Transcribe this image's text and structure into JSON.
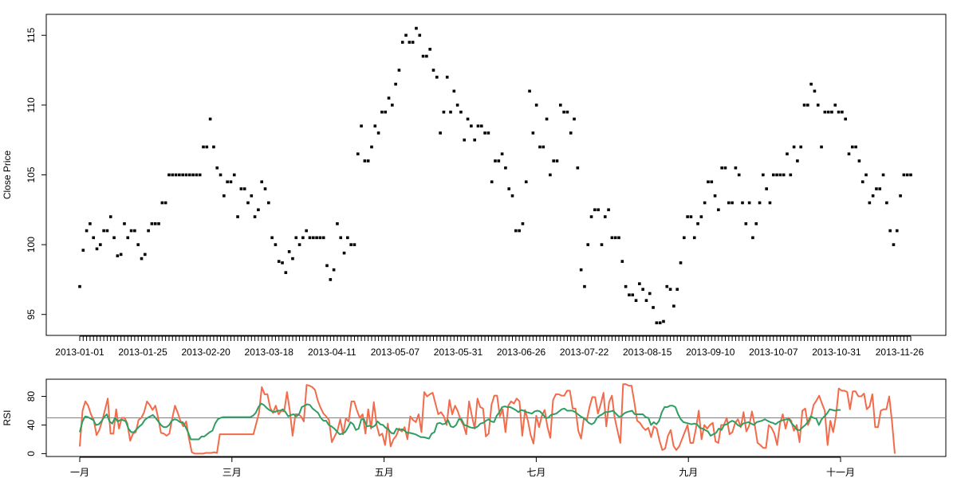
{
  "colors": {
    "points": "#000000",
    "rsi_fast": "#f26b4a",
    "rsi_slow": "#2e9e62",
    "midline": "#808080",
    "frame": "#000000"
  },
  "chart_data": [
    {
      "type": "scatter",
      "ylabel": "Close Price",
      "ylim": [
        93.5,
        116.5
      ],
      "y_ticks": [
        95,
        100,
        105,
        110,
        115
      ],
      "x_tick_labels": [
        "2013-01-01",
        "2013-01-25",
        "2013-02-20",
        "2013-03-18",
        "2013-04-11",
        "2013-05-07",
        "2013-05-31",
        "2013-06-26",
        "2013-07-22",
        "2013-08-15",
        "2013-09-10",
        "2013-10-07",
        "2013-10-31",
        "2013-11-26"
      ],
      "grid": false,
      "series": [
        {
          "values": [
            97.0,
            99.6,
            101.0,
            101.5,
            100.5,
            99.7,
            100.0,
            101.0,
            101.0,
            102.0,
            100.5,
            99.2,
            99.3,
            101.5,
            100.5,
            101.0,
            101.0,
            100.0,
            99.0,
            99.3,
            101.0,
            101.5,
            101.5,
            101.5,
            103.0,
            103.0,
            105.0,
            105.0,
            105.0,
            105.0,
            105.0,
            105.0,
            105.0,
            105.0,
            105.0,
            105.0,
            107.0,
            107.0,
            109.0,
            107.0,
            105.5,
            105.0,
            103.5,
            104.5,
            104.5,
            105.0,
            102.0,
            104.0,
            104.0,
            103.0,
            103.5,
            102.0,
            102.5,
            104.5,
            104.0,
            103.0,
            100.5,
            100.0,
            98.8,
            98.7,
            98.0,
            99.5,
            99.0,
            100.5,
            100.0,
            100.5,
            101.0,
            100.5,
            100.5,
            100.5,
            100.5,
            100.5,
            98.5,
            97.5,
            98.2,
            101.5,
            100.5,
            99.4,
            100.5,
            100.0,
            100.0,
            106.5,
            108.5,
            106.0,
            106.0,
            107.0,
            108.5,
            108.0,
            109.5,
            109.5,
            110.5,
            110.0,
            111.5,
            112.5,
            114.5,
            115.0,
            114.5,
            114.5,
            115.5,
            115.0,
            113.5,
            113.5,
            114.0,
            112.5,
            112.0,
            108.0,
            109.5,
            112.0,
            109.5,
            111.0,
            110.0,
            109.5,
            107.5,
            109.0,
            108.5,
            107.5,
            108.5,
            108.5,
            108.0,
            108.0,
            104.5,
            106.0,
            106.0,
            106.5,
            105.5,
            104.0,
            103.5,
            101.0,
            101.0,
            101.5,
            104.5,
            111.0,
            108.0,
            110.0,
            107.0,
            107.0,
            109.0,
            105.0,
            106.0,
            106.0,
            110.0,
            109.5,
            109.5,
            108.0,
            109.0,
            105.5,
            98.2,
            97.0,
            100.0,
            102.0,
            102.5,
            102.5,
            100.0,
            102.0,
            102.5,
            100.5,
            100.5,
            100.5,
            98.8,
            97.0,
            96.4,
            96.4,
            96.0,
            97.2,
            96.8,
            96.0,
            96.5,
            95.5,
            94.4,
            94.4,
            94.5,
            97.0,
            96.8,
            95.6,
            96.8,
            98.7,
            100.5,
            102.0,
            102.0,
            100.5,
            101.5,
            102.0,
            103.0,
            104.5,
            104.5,
            103.5,
            102.5,
            105.5,
            105.5,
            103.0,
            103.0,
            105.5,
            105.0,
            103.0,
            101.5,
            103.0,
            100.5,
            101.5,
            103.0,
            105.0,
            104.0,
            103.0,
            105.0,
            105.0,
            105.0,
            105.0,
            106.5,
            105.0,
            107.0,
            106.0,
            107.0,
            110.0,
            110.0,
            111.5,
            111.0,
            110.0,
            107.0,
            109.5,
            109.5,
            109.5,
            110.0,
            109.5,
            109.5,
            109.0,
            106.5,
            107.0,
            107.0,
            106.0,
            104.5,
            105.0,
            103.0,
            103.5,
            104.0,
            104.0,
            105.0,
            103.0,
            101.0,
            100.0,
            101.0,
            103.5,
            105.0,
            105.0,
            105.0
          ]
        }
      ]
    },
    {
      "type": "line",
      "ylabel": "RSI",
      "ylim": [
        -4,
        104
      ],
      "y_ticks": [
        0,
        40,
        80
      ],
      "x_tick_labels": [
        "一月",
        "三月",
        "五月",
        "七月",
        "九月",
        "十一月"
      ],
      "reference_line": 50,
      "grid": false,
      "series": [
        {
          "color_key": "rsi_fast",
          "values": [
            10,
            60,
            73,
            67,
            55,
            47,
            26,
            33,
            46,
            61,
            77,
            28,
            28,
            62,
            35,
            50,
            50,
            42,
            18,
            28,
            30,
            47,
            50,
            58,
            73,
            68,
            61,
            67,
            50,
            29,
            28,
            25,
            28,
            49,
            67,
            57,
            45,
            38,
            45,
            21,
            2,
            0,
            0,
            0,
            0,
            1,
            1,
            1,
            2,
            1,
            27,
            27,
            27,
            27,
            27,
            27,
            27,
            27,
            27,
            27,
            27,
            27,
            27,
            42,
            57,
            93,
            83,
            83,
            64,
            57,
            67,
            55,
            60,
            59,
            86,
            60,
            25,
            55,
            55,
            52,
            45,
            96,
            95,
            93,
            89,
            74,
            64,
            56,
            52,
            47,
            16,
            24,
            32,
            48,
            27,
            49,
            45,
            73,
            73,
            60,
            50,
            55,
            28,
            62,
            35,
            72,
            40,
            25,
            28,
            12,
            42,
            10,
            20,
            25,
            35,
            31,
            37,
            20,
            52,
            47,
            44,
            55,
            30,
            86,
            80,
            83,
            85,
            70,
            55,
            58,
            52,
            40,
            75,
            55,
            67,
            59,
            47,
            40,
            27,
            73,
            53,
            35,
            77,
            65,
            63,
            24,
            28,
            68,
            81,
            81,
            52,
            62,
            30,
            67,
            73,
            70,
            77,
            73,
            25,
            61,
            46,
            26,
            14,
            53,
            37,
            53,
            61,
            37,
            22,
            75,
            83,
            83,
            81,
            81,
            88,
            88,
            63,
            63,
            32,
            21,
            50,
            46,
            65,
            79,
            79,
            56,
            69,
            85,
            38,
            72,
            81,
            50,
            32,
            15,
            97,
            97,
            95,
            95,
            72,
            46,
            43,
            37,
            33,
            36,
            23,
            38,
            35,
            18,
            5,
            7,
            25,
            33,
            11,
            5,
            10,
            20,
            30,
            40,
            15,
            15,
            35,
            60,
            20,
            40,
            35,
            40,
            43,
            17,
            15,
            40,
            40,
            50,
            27,
            30,
            43,
            48,
            37,
            58,
            31,
            39,
            59,
            40,
            15,
            12,
            8,
            8,
            40,
            36,
            28,
            12,
            42,
            55,
            35,
            50,
            46,
            32,
            40,
            16,
            60,
            63,
            40,
            50,
            68,
            74,
            81,
            70,
            60,
            12,
            46,
            30,
            53,
            91,
            88,
            88,
            86,
            62,
            87,
            87,
            80,
            80,
            84,
            62,
            66,
            83,
            37,
            37,
            60,
            62,
            62,
            80,
            45,
            0
          ]
        },
        {
          "color_key": "rsi_slow",
          "values": [
            30,
            45,
            52,
            51,
            49,
            47,
            40,
            41,
            45,
            51,
            55,
            45,
            42,
            50,
            45,
            47,
            47,
            45,
            35,
            30,
            30,
            34,
            38,
            41,
            47,
            50,
            52,
            54,
            50,
            45,
            40,
            37,
            37,
            40,
            46,
            48,
            47,
            44,
            44,
            38,
            30,
            20,
            20,
            20,
            20,
            24,
            24,
            27,
            30,
            32,
            42,
            48,
            50,
            51,
            51,
            51,
            51,
            51,
            51,
            51,
            51,
            51,
            51,
            51,
            53,
            57,
            65,
            70,
            68,
            64,
            61,
            59,
            58,
            60,
            60,
            62,
            58,
            52,
            54,
            55,
            52,
            55,
            65,
            67,
            69,
            68,
            63,
            60,
            57,
            50,
            46,
            46,
            40,
            38,
            35,
            31,
            27,
            28,
            30,
            36,
            44,
            41,
            33,
            35,
            48,
            48,
            38,
            39,
            37,
            39,
            45,
            41,
            40,
            36,
            34,
            29,
            28,
            35,
            33,
            34,
            32,
            29,
            29,
            28,
            27,
            25,
            23,
            23,
            22,
            21,
            28,
            30,
            42,
            43,
            41,
            42,
            47,
            38,
            37,
            40,
            48,
            48,
            40,
            39,
            37,
            36,
            36,
            38,
            42,
            43,
            46,
            48,
            45,
            44,
            53,
            58,
            65,
            66,
            65,
            65,
            63,
            61,
            58,
            61,
            60,
            58,
            57,
            56,
            59,
            60,
            59,
            55,
            50,
            50,
            54,
            55,
            56,
            59,
            62,
            63,
            60,
            60,
            60,
            58,
            55,
            52,
            50,
            47,
            43,
            41,
            43,
            50,
            53,
            55,
            58,
            58,
            59,
            60,
            56,
            52,
            52,
            56,
            58,
            59,
            60,
            55,
            55,
            55,
            55,
            51,
            50,
            40,
            44,
            41,
            46,
            58,
            65,
            65,
            67,
            67,
            65,
            55,
            48,
            44,
            43,
            42,
            41,
            42,
            41,
            36,
            35,
            33,
            31,
            25,
            27,
            29,
            35,
            33,
            40,
            41,
            44,
            46,
            44,
            40,
            38,
            42,
            43,
            44,
            42,
            40,
            44,
            45,
            46,
            48,
            46,
            44,
            43,
            41,
            44,
            46,
            47,
            48,
            48,
            42,
            38,
            33,
            33,
            37,
            40,
            45,
            52,
            50,
            49,
            40,
            48,
            52,
            56,
            62,
            61,
            60,
            61,
            61
          ]
        }
      ]
    }
  ]
}
